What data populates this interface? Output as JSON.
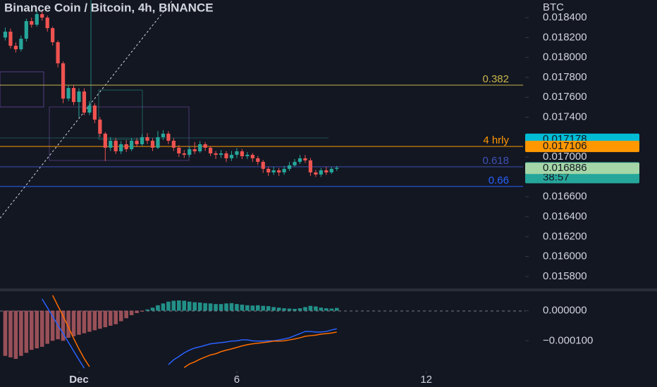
{
  "chart_data": [
    {
      "type": "candlestick",
      "title": "Binance Coin / Bitcoin, 4h, BINANCE",
      "ylabel": "BTC",
      "x": [
        -14,
        -13,
        -12,
        -11,
        -10,
        -9,
        -8,
        -7,
        -6,
        -5,
        -4,
        -3,
        -2,
        -1,
        0,
        1,
        2,
        3,
        4,
        5,
        6,
        7,
        8,
        9,
        10,
        11,
        12,
        13,
        14,
        15,
        16,
        17,
        18,
        19,
        20,
        21,
        22,
        23,
        24,
        25,
        26,
        27,
        28,
        29,
        30,
        31,
        32,
        33,
        34,
        35,
        36,
        37,
        38,
        39,
        40,
        41,
        42,
        43,
        44,
        45,
        46,
        47,
        48,
        49
      ],
      "open": [
        0.0182,
        0.018259,
        0.018117,
        0.018082,
        0.018188,
        0.018365,
        0.018329,
        0.018435,
        0.0184,
        0.018294,
        0.018153,
        0.017941,
        0.017587,
        0.017693,
        0.017552,
        0.017658,
        0.017446,
        0.017517,
        0.017375,
        0.017234,
        0.017093,
        0.017163,
        0.017057,
        0.017128,
        0.017078,
        0.017163,
        0.017128,
        0.017199,
        0.017163,
        0.017093,
        0.017199,
        0.017234,
        0.017163,
        0.017093,
        0.017036,
        0.017022,
        0.017078,
        0.017057,
        0.017128,
        0.017093,
        0.017036,
        0.017022,
        0.017036,
        0.016987,
        0.017022,
        0.017057,
        0.017008,
        0.017022,
        0.016987,
        0.016951,
        0.016881,
        0.016845,
        0.016866,
        0.016845,
        0.016881,
        0.016916,
        0.016951,
        0.016987,
        0.016966,
        0.016845,
        0.016824,
        0.016866,
        0.016845,
        0.016881
      ],
      "high": [
        0.0183,
        0.01829,
        0.01815,
        0.01822,
        0.01839,
        0.0184,
        0.01847,
        0.01846,
        0.01842,
        0.01831,
        0.01817,
        0.01796,
        0.01772,
        0.01772,
        0.01769,
        0.01769,
        0.01756,
        0.01754,
        0.0174,
        0.01725,
        0.0172,
        0.01719,
        0.01716,
        0.01717,
        0.01719,
        0.01719,
        0.01723,
        0.01724,
        0.01719,
        0.01726,
        0.01727,
        0.01726,
        0.01719,
        0.01712,
        0.01707,
        0.01711,
        0.01715,
        0.01716,
        0.01715,
        0.01711,
        0.01706,
        0.01707,
        0.01706,
        0.01706,
        0.01709,
        0.01708,
        0.01705,
        0.01704,
        0.01701,
        0.01697,
        0.0169,
        0.0169,
        0.01689,
        0.01691,
        0.01695,
        0.01698,
        0.01702,
        0.01702,
        0.01699,
        0.01687,
        0.01689,
        0.0169,
        0.0169,
        0.01691
      ],
      "low": [
        0.01817,
        0.01809,
        0.01805,
        0.01806,
        0.01816,
        0.0183,
        0.01831,
        0.01837,
        0.01826,
        0.01812,
        0.0179,
        0.01754,
        0.01756,
        0.01752,
        0.0174,
        0.01742,
        0.01742,
        0.01734,
        0.0172,
        0.01696,
        0.01706,
        0.01703,
        0.01703,
        0.01705,
        0.01706,
        0.0171,
        0.01711,
        0.01713,
        0.01706,
        0.01708,
        0.01717,
        0.01713,
        0.01706,
        0.017,
        0.01699,
        0.017,
        0.01703,
        0.01704,
        0.01706,
        0.01701,
        0.01698,
        0.01699,
        0.01695,
        0.01696,
        0.01699,
        0.01698,
        0.01698,
        0.01695,
        0.01692,
        0.01684,
        0.01681,
        0.01682,
        0.01681,
        0.01682,
        0.01686,
        0.0169,
        0.01693,
        0.01694,
        0.01681,
        0.0168,
        0.0168,
        0.01682,
        0.01683,
        0.01686
      ],
      "close": [
        0.018259,
        0.018117,
        0.018082,
        0.018188,
        0.018365,
        0.018329,
        0.018435,
        0.0184,
        0.018294,
        0.018153,
        0.017941,
        0.017587,
        0.017693,
        0.017552,
        0.017658,
        0.017446,
        0.017517,
        0.017375,
        0.017234,
        0.017093,
        0.017163,
        0.017057,
        0.017128,
        0.017078,
        0.017163,
        0.017128,
        0.017199,
        0.017163,
        0.017093,
        0.017199,
        0.017234,
        0.017163,
        0.017093,
        0.017036,
        0.017022,
        0.017078,
        0.017057,
        0.017128,
        0.017093,
        0.017036,
        0.017022,
        0.017036,
        0.016987,
        0.017022,
        0.017057,
        0.017008,
        0.017022,
        0.016987,
        0.016951,
        0.016881,
        0.016845,
        0.016866,
        0.016845,
        0.016881,
        0.016916,
        0.016951,
        0.016987,
        0.016966,
        0.016845,
        0.016824,
        0.016866,
        0.016845,
        0.016881,
        0.016891
      ],
      "up_color": "#26a69a",
      "down_color": "#ef5350",
      "xlim": [
        -15,
        84.8
      ],
      "xticks": [
        {
          "value": 0,
          "label": "Dec"
        },
        {
          "value": 30,
          "label": "6"
        },
        {
          "value": 66,
          "label": "12"
        }
      ],
      "ylim": [
        0.015679,
        0.018577
      ],
      "yticks": [
        {
          "value": 0.0184,
          "label": "0.018400"
        },
        {
          "value": 0.0182,
          "label": "0.018200"
        },
        {
          "value": 0.018,
          "label": "0.018000"
        },
        {
          "value": 0.0178,
          "label": "0.017800"
        },
        {
          "value": 0.0176,
          "label": "0.017600"
        },
        {
          "value": 0.0174,
          "label": "0.017400"
        },
        {
          "value": 0.017,
          "label": "0.017000"
        },
        {
          "value": 0.0166,
          "label": "0.016600"
        },
        {
          "value": 0.0164,
          "label": "0.016400"
        },
        {
          "value": 0.0162,
          "label": "0.016200"
        },
        {
          "value": 0.016,
          "label": "0.016000"
        },
        {
          "value": 0.0158,
          "label": "0.015800"
        }
      ],
      "levels": [
        {
          "label": "0.382",
          "value": 0.017722,
          "color": "#c9b54a"
        },
        {
          "label": "4 hrly",
          "value": 0.017106,
          "color": "#ff9800"
        },
        {
          "label": "0.618",
          "value": 0.016902,
          "color": "#3f51b5"
        },
        {
          "label": "0.66",
          "value": 0.016704,
          "color": "#2962ff"
        }
      ],
      "price_tags": [
        {
          "value": 0.017178,
          "color": "#00bcd4"
        },
        {
          "value": 0.017106,
          "color": "#ff9800"
        },
        {
          "value": 0.016891,
          "color": "#26a69a",
          "countdown": "38:57"
        },
        {
          "value": 0.016886,
          "color": "#a5d6a7"
        }
      ]
    },
    {
      "type": "macd",
      "x": [
        -14,
        -13,
        -12,
        -11,
        -10,
        -9,
        -8,
        -7,
        -6,
        -5,
        -4,
        -3,
        -2,
        -1,
        0,
        1,
        2,
        3,
        4,
        5,
        6,
        7,
        8,
        9,
        10,
        11,
        12,
        13,
        14,
        15,
        16,
        17,
        18,
        19,
        20,
        21,
        22,
        23,
        24,
        25,
        26,
        27,
        28,
        29,
        30,
        31,
        32,
        33,
        34,
        35,
        36,
        37,
        38,
        39,
        40,
        41,
        42,
        43,
        44,
        45,
        46,
        47,
        48,
        49
      ],
      "values": [
        -0.00015,
        -0.000155,
        -0.00016,
        -0.00015,
        -0.00014,
        -0.00013,
        -0.000125,
        -0.00012,
        -0.00011,
        -0.0001,
        -9.5e-05,
        -0.0001,
        -9e-05,
        -8.5e-05,
        -8e-05,
        -7.5e-05,
        -7e-05,
        -6.5e-05,
        -6e-05,
        -5.5e-05,
        -5e-05,
        -4.5e-05,
        -3.5e-05,
        -2.5e-05,
        -1.5e-05,
        -8e-06,
        -3e-06,
        4e-06,
        1e-05,
        1.8e-05,
        2.4e-05,
        3e-05,
        3.3e-05,
        3.4e-05,
        3.3e-05,
        3e-05,
        2.8e-05,
        2.7e-05,
        2.5e-05,
        2.4e-05,
        2.2e-05,
        2.2e-05,
        2.4e-05,
        2.5e-05,
        2.2e-05,
        2e-05,
        1.8e-05,
        1.7e-05,
        1.8e-05,
        1.6e-05,
        1.5e-05,
        1.2e-05,
        1e-05,
        8e-06,
        7e-06,
        6e-06,
        8e-06,
        1.2e-05,
        1.6e-05,
        1.4e-05,
        1e-05,
        8e-06,
        7e-06,
        9e-06
      ],
      "pos_color": "#26a69a",
      "neg_color": "#b25a62",
      "series": [
        {
          "color": "#2962ff",
          "values": [
            null,
            null,
            null,
            null,
            null,
            null,
            null,
            3.9e-05,
            1e-05,
            -1.9e-05,
            -4.8e-05,
            -7.6e-05,
            -0.000105,
            -0.000134,
            -0.000163,
            -0.000191,
            null,
            null,
            null,
            null,
            null,
            null,
            null,
            null,
            null,
            null,
            null,
            null,
            null,
            null,
            null,
            -0.000179,
            -0.000163,
            -0.000152,
            -0.00014,
            -0.000131,
            -0.000124,
            -0.00012,
            -0.000115,
            -0.00011,
            -0.000108,
            -0.000106,
            -0.000104,
            -0.000101,
            -0.0001,
            -9.7e-05,
            -9.7e-05,
            -0.0001,
            -0.000101,
            -0.000101,
            -0.0001,
            -0.0001,
            -9.7e-05,
            -9.4e-05,
            -9e-05,
            -8.3e-05,
            -7.6e-05,
            -6.9e-05,
            -6.9e-05,
            -7.1e-05,
            -7.1e-05,
            -6.9e-05,
            -6.4e-05,
            -6e-05
          ]
        },
        {
          "color": "#ff6d00",
          "values": [
            null,
            null,
            null,
            null,
            null,
            null,
            null,
            null,
            null,
            5.1e-05,
            1.6e-05,
            -1.8e-05,
            -5.5e-05,
            -9.2e-05,
            -0.000127,
            -0.000159,
            -0.000186,
            null,
            null,
            null,
            null,
            null,
            null,
            null,
            null,
            null,
            null,
            null,
            null,
            null,
            null,
            null,
            null,
            null,
            -0.000189,
            -0.000177,
            -0.00017,
            -0.000161,
            -0.000154,
            -0.000147,
            -0.000143,
            -0.000136,
            -0.000131,
            -0.000127,
            -0.000122,
            -0.000117,
            -0.000113,
            -0.00011,
            -0.000108,
            -0.000106,
            -0.000104,
            -0.000101,
            -0.000101,
            -0.0001,
            -9.7e-05,
            -9.4e-05,
            -9e-05,
            -8.5e-05,
            -8.3e-05,
            -8.1e-05,
            -7.8e-05,
            -7.6e-05,
            -7.4e-05,
            -7.1e-05
          ]
        }
      ],
      "ylim": [
        -0.000195,
        5.5e-05
      ],
      "yticks": [
        {
          "value": 0,
          "label": "0.000000"
        },
        {
          "value": -0.0001,
          "label": "−0.000100"
        }
      ]
    }
  ]
}
